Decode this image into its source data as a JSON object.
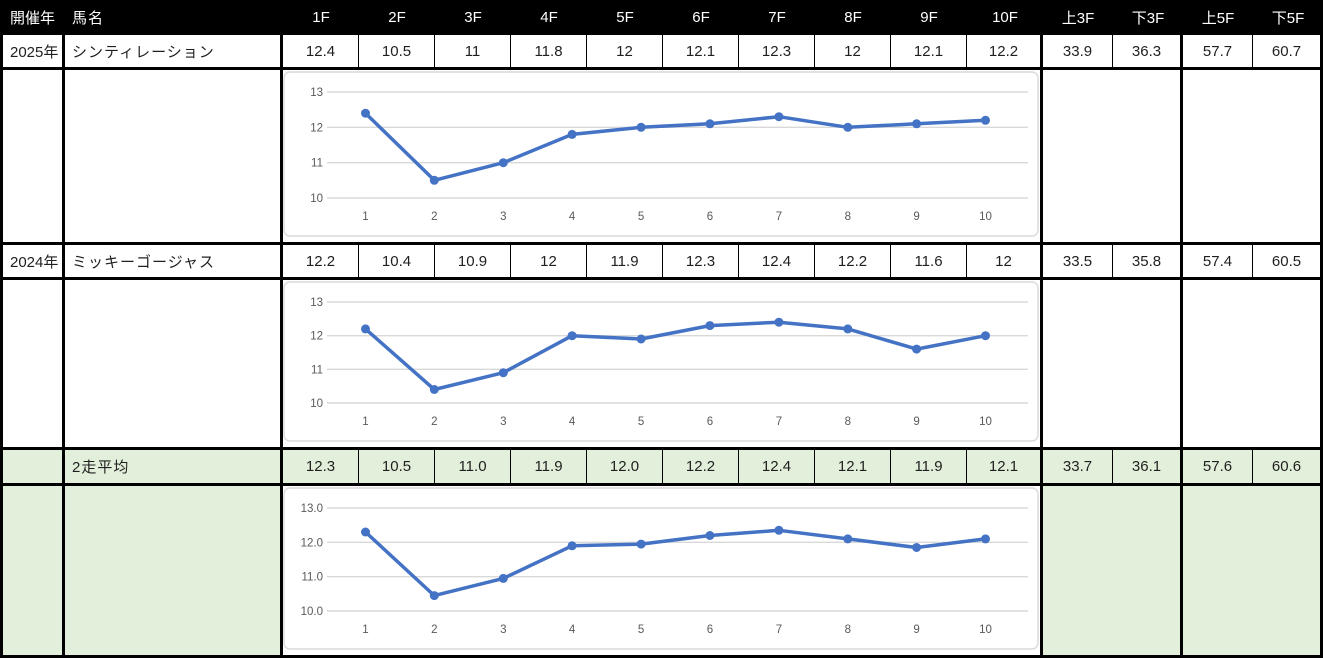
{
  "colors": {
    "header_bg": "#000000",
    "header_text": "#ffffff",
    "avg_row_bg": "#e2efda",
    "border": "#000000",
    "line": "#4472c4",
    "gridline": "#d9d9d9",
    "chart_frame": "#d9d9d9",
    "axis_text": "#595959",
    "cell_text": "#1f1f1f"
  },
  "header": {
    "year": "開催年",
    "horse": "馬名",
    "furlongs": [
      "1F",
      "2F",
      "3F",
      "4F",
      "5F",
      "6F",
      "7F",
      "8F",
      "9F",
      "10F"
    ],
    "up3f": "上3F",
    "down3f": "下3F",
    "up5f": "上5F",
    "down5f": "下5F"
  },
  "rows": [
    {
      "year": "2025年",
      "name": "シンティレーション",
      "laps": [
        "12.4",
        "10.5",
        "11",
        "11.8",
        "12",
        "12.1",
        "12.3",
        "12",
        "12.1",
        "12.2"
      ],
      "up3f": "33.9",
      "down3f": "36.3",
      "up5f": "57.7",
      "down5f": "60.7"
    },
    {
      "year": "2024年",
      "name": "ミッキーゴージャス",
      "laps": [
        "12.2",
        "10.4",
        "10.9",
        "12",
        "11.9",
        "12.3",
        "12.4",
        "12.2",
        "11.6",
        "12"
      ],
      "up3f": "33.5",
      "down3f": "35.8",
      "up5f": "57.4",
      "down5f": "60.5"
    },
    {
      "year": "",
      "name": "2走平均",
      "laps": [
        "12.3",
        "10.5",
        "11.0",
        "11.9",
        "12.0",
        "12.2",
        "12.4",
        "12.1",
        "11.9",
        "12.1"
      ],
      "up3f": "33.7",
      "down3f": "36.1",
      "up5f": "57.6",
      "down5f": "60.6"
    }
  ],
  "chart_data": [
    {
      "type": "line",
      "title": "2025 シンティレーション lap times",
      "x": [
        "1",
        "2",
        "3",
        "4",
        "5",
        "6",
        "7",
        "8",
        "9",
        "10"
      ],
      "values": [
        12.4,
        10.5,
        11,
        11.8,
        12,
        12.1,
        12.3,
        12,
        12.1,
        12.2
      ],
      "ylim": [
        10,
        13
      ],
      "y_ticks": [
        "10",
        "11",
        "12",
        "13"
      ],
      "grid": true,
      "legend": "none",
      "line_color": "#4472c4",
      "markers": true
    },
    {
      "type": "line",
      "title": "2024 ミッキーゴージャス lap times",
      "x": [
        "1",
        "2",
        "3",
        "4",
        "5",
        "6",
        "7",
        "8",
        "9",
        "10"
      ],
      "values": [
        12.2,
        10.4,
        10.9,
        12,
        11.9,
        12.3,
        12.4,
        12.2,
        11.6,
        12
      ],
      "ylim": [
        10,
        13
      ],
      "y_ticks": [
        "10",
        "11",
        "12",
        "13"
      ],
      "grid": true,
      "legend": "none",
      "line_color": "#4472c4",
      "markers": true
    },
    {
      "type": "line",
      "title": "2走平均 lap times",
      "x": [
        "1",
        "2",
        "3",
        "4",
        "5",
        "6",
        "7",
        "8",
        "9",
        "10"
      ],
      "values": [
        12.3,
        10.45,
        10.95,
        11.9,
        11.95,
        12.2,
        12.35,
        12.1,
        11.85,
        12.1
      ],
      "ylim": [
        10,
        13
      ],
      "y_ticks": [
        "10.0",
        "11.0",
        "12.0",
        "13.0"
      ],
      "grid": true,
      "legend": "none",
      "line_color": "#4472c4",
      "markers": true
    }
  ]
}
